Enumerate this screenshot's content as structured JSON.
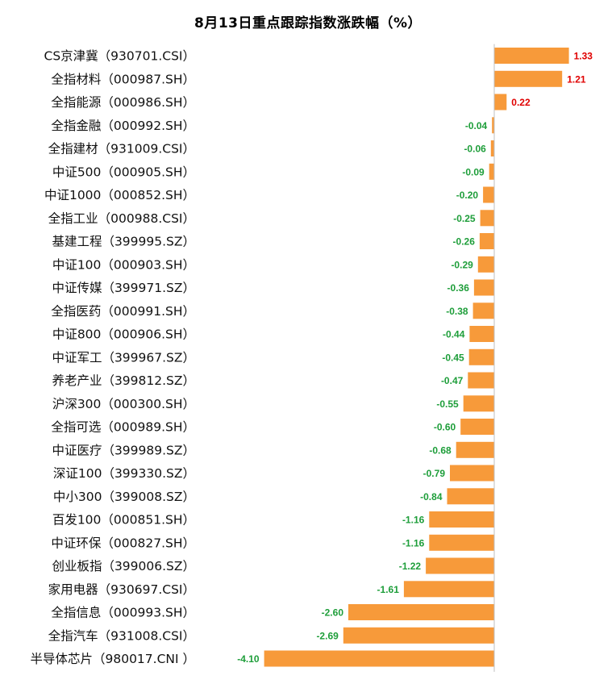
{
  "chart_data": {
    "type": "bar",
    "orientation": "horizontal",
    "title": "8月13日重点跟踪指数涨跌幅（%）",
    "categories": [
      "CS京津冀（930701.CSI）",
      "全指材料（000987.SH）",
      "全指能源（000986.SH）",
      "全指金融（000992.SH）",
      "全指建材（931009.CSI）",
      "中证500（000905.SH）",
      "中证1000（000852.SH）",
      "全指工业（000988.CSI）",
      "基建工程（399995.SZ）",
      "中证100（000903.SH）",
      "中证传媒（399971.SZ）",
      "全指医药（000991.SH）",
      "中证800（000906.SH）",
      "中证军工（399967.SZ）",
      "养老产业（399812.SZ）",
      "沪深300（000300.SH）",
      "全指可选（000989.SH）",
      "中证医疗（399989.SZ）",
      "深证100（399330.SZ）",
      "中小300（399008.SZ）",
      "百发100（000851.SH）",
      "中证环保（000827.SH）",
      "创业板指（399006.SZ）",
      "家用电器（930697.CSI）",
      "全指信息（000993.SH）",
      "全指汽车（931008.CSI）",
      "半导体芯片（980017.CNI ）"
    ],
    "values": [
      1.33,
      1.21,
      0.22,
      -0.04,
      -0.06,
      -0.09,
      -0.2,
      -0.25,
      -0.26,
      -0.29,
      -0.36,
      -0.38,
      -0.44,
      -0.45,
      -0.47,
      -0.55,
      -0.6,
      -0.68,
      -0.79,
      -0.84,
      -1.16,
      -1.16,
      -1.22,
      -1.61,
      -2.6,
      -2.69,
      -4.1
    ],
    "data_labels": [
      "1.33",
      "1.21",
      "0.22",
      "-0.04",
      "-0.06",
      "-0.09",
      "-0.20",
      "-0.25",
      "-0.26",
      "-0.29",
      "-0.36",
      "-0.38",
      "-0.44",
      "-0.45",
      "-0.47",
      "-0.55",
      "-0.60",
      "-0.68",
      "-0.79",
      "-0.84",
      "-1.16",
      "-1.16",
      "-1.22",
      "-1.61",
      "-2.60",
      "-2.69",
      "-4.10"
    ],
    "xlim": [
      -4.1,
      1.33
    ],
    "grid": false,
    "legend": "none",
    "colors": {
      "bar": "#F79A3A",
      "positive_label": "#E00000",
      "negative_label": "#1E9E3A",
      "axis": "#BFBFBF"
    }
  }
}
